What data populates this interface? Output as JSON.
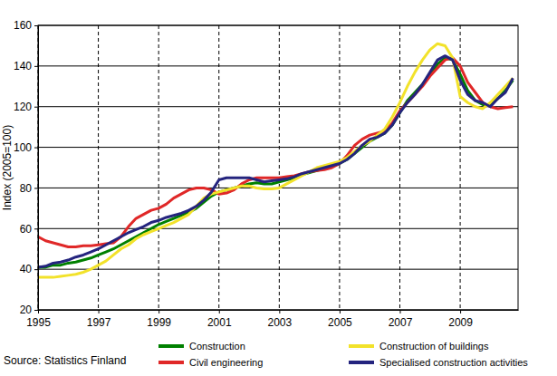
{
  "chart_data": {
    "type": "line",
    "y_label": "Index (2005=100)",
    "source": "Source: Statistics Finland",
    "x": [
      1995,
      1995.25,
      1995.5,
      1995.75,
      1996,
      1996.25,
      1996.5,
      1996.75,
      1997,
      1997.25,
      1997.5,
      1997.75,
      1998,
      1998.25,
      1998.5,
      1998.75,
      1999,
      1999.25,
      1999.5,
      1999.75,
      2000,
      2000.25,
      2000.5,
      2000.75,
      2001,
      2001.25,
      2001.5,
      2001.75,
      2002,
      2002.25,
      2002.5,
      2002.75,
      2003,
      2003.25,
      2003.5,
      2003.75,
      2004,
      2004.25,
      2004.5,
      2004.75,
      2005,
      2005.25,
      2005.5,
      2005.75,
      2006,
      2006.25,
      2006.5,
      2006.75,
      2007,
      2007.25,
      2007.5,
      2007.75,
      2008,
      2008.25,
      2008.5,
      2008.75,
      2009,
      2009.25,
      2009.5,
      2009.75,
      2010,
      2010.25,
      2010.5,
      2010.75
    ],
    "series": [
      {
        "name": "Construction",
        "color": "#008000",
        "values": [
          41,
          41,
          42,
          42,
          43,
          43.5,
          44.5,
          45.5,
          47,
          48.5,
          50,
          52,
          54,
          56,
          58,
          60,
          62,
          63.5,
          65,
          66.5,
          68,
          70,
          73,
          76,
          78,
          79,
          80,
          81,
          82,
          82.5,
          82,
          82,
          83,
          84,
          85,
          86.5,
          87.5,
          88.5,
          89.5,
          90.5,
          92,
          94,
          97,
          100,
          103,
          105,
          107,
          111,
          117,
          123,
          127,
          131,
          136,
          141,
          144,
          143,
          136,
          128,
          123,
          121,
          121,
          124,
          128,
          133
        ]
      },
      {
        "name": "Civil engineering",
        "color": "#e02828",
        "values": [
          56,
          54,
          53,
          52,
          51,
          51,
          51.5,
          51.5,
          52,
          52.5,
          53,
          56,
          61,
          65,
          67,
          69,
          70,
          72,
          75,
          77,
          79,
          80,
          80,
          79,
          77,
          77.5,
          79,
          82,
          84,
          85,
          85,
          85,
          85,
          85.5,
          86,
          87,
          88,
          88.5,
          89,
          90,
          92,
          96,
          101,
          104,
          106,
          107,
          108,
          112,
          118,
          122,
          126,
          130,
          135,
          139,
          143,
          144,
          140,
          132,
          127,
          122,
          120,
          119,
          119.5,
          120
        ]
      },
      {
        "name": "Construction of buildings",
        "color": "#f2e22a",
        "values": [
          36,
          36,
          36,
          36.5,
          37,
          37.5,
          38.5,
          40,
          42,
          44,
          47,
          50,
          52,
          55,
          57,
          58.5,
          60,
          61.5,
          63,
          65,
          67,
          71,
          75,
          77,
          78,
          79,
          80,
          81,
          81,
          80,
          79.5,
          79.5,
          80,
          82,
          84,
          86,
          88,
          90,
          91,
          92,
          93,
          95,
          98,
          101,
          103,
          106,
          109,
          115,
          122,
          130,
          137,
          143,
          148,
          151,
          150,
          144,
          125,
          122,
          120,
          119,
          122,
          126,
          130,
          134
        ]
      },
      {
        "name": "Specialised construction activities",
        "color": "#24247e",
        "values": [
          41,
          41.5,
          43,
          43.5,
          44.5,
          46,
          47,
          48.5,
          50,
          52,
          54,
          56,
          58,
          59.5,
          61,
          63,
          64,
          65.5,
          66.5,
          67.5,
          69,
          71,
          74,
          78,
          84,
          85,
          85,
          85,
          85,
          84,
          83,
          83.5,
          84,
          84.5,
          85.5,
          87,
          88,
          89,
          90,
          91,
          92,
          94,
          97,
          101,
          104,
          105,
          107,
          111,
          117,
          122,
          126,
          131,
          137,
          143,
          145,
          143,
          133,
          126,
          123,
          122,
          120,
          124,
          127,
          134
        ]
      }
    ],
    "xlim": [
      1995,
      2010.92
    ],
    "xticks": [
      1995,
      1997,
      1999,
      2001,
      2003,
      2005,
      2007,
      2009
    ],
    "ylim": [
      20,
      160
    ],
    "yticks": [
      20,
      40,
      60,
      80,
      100,
      120,
      140,
      160
    ],
    "grid": true,
    "legend": "bottom"
  }
}
